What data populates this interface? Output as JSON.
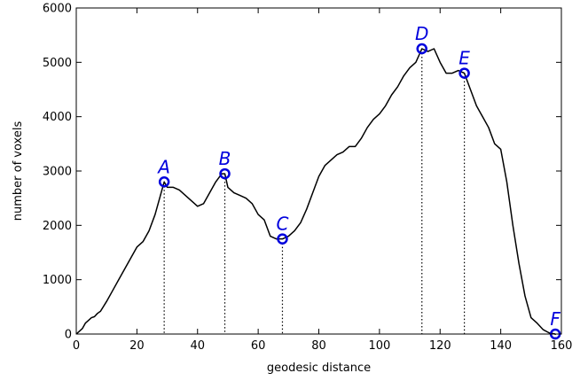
{
  "chart_data": {
    "type": "line",
    "xlabel": "geodesic distance",
    "ylabel": "number of voxels",
    "xlim": [
      0,
      160
    ],
    "ylim": [
      0,
      6000
    ],
    "xticks": [
      0,
      20,
      40,
      60,
      80,
      100,
      120,
      140,
      160
    ],
    "yticks": [
      0,
      1000,
      2000,
      3000,
      4000,
      5000,
      6000
    ],
    "grid": false,
    "colors": {
      "line": "#000000",
      "markers": "#0000dd",
      "labels": "#0000dd",
      "drop_lines": "#000000"
    },
    "series": [
      {
        "x": [
          0,
          1,
          2,
          3,
          4,
          5,
          6,
          7,
          8,
          10,
          12,
          14,
          16,
          18,
          20,
          22,
          24,
          26,
          28,
          29,
          30,
          32,
          34,
          36,
          38,
          40,
          42,
          44,
          46,
          48,
          49,
          50,
          52,
          54,
          56,
          58,
          60,
          62,
          64,
          66,
          68,
          70,
          72,
          74,
          76,
          78,
          80,
          82,
          84,
          86,
          88,
          90,
          92,
          94,
          96,
          98,
          100,
          102,
          104,
          106,
          108,
          110,
          112,
          114,
          116,
          118,
          120,
          122,
          124,
          126,
          128,
          130,
          132,
          134,
          136,
          138,
          140,
          142,
          144,
          146,
          148,
          150,
          152,
          154,
          156,
          158
        ],
        "y": [
          0,
          50,
          100,
          200,
          250,
          300,
          320,
          380,
          420,
          600,
          800,
          1000,
          1200,
          1400,
          1600,
          1700,
          1900,
          2200,
          2600,
          2800,
          2700,
          2700,
          2650,
          2550,
          2450,
          2350,
          2400,
          2600,
          2800,
          2950,
          2950,
          2700,
          2600,
          2550,
          2500,
          2400,
          2200,
          2100,
          1800,
          1750,
          1750,
          1800,
          1900,
          2050,
          2300,
          2600,
          2900,
          3100,
          3200,
          3300,
          3350,
          3450,
          3450,
          3600,
          3800,
          3950,
          4050,
          4200,
          4400,
          4550,
          4750,
          4900,
          5000,
          5250,
          5200,
          5250,
          5000,
          4800,
          4800,
          4850,
          4800,
          4500,
          4200,
          4000,
          3800,
          3500,
          3400,
          2800,
          2000,
          1300,
          700,
          300,
          200,
          80,
          20,
          0
        ]
      }
    ],
    "points": [
      {
        "label": "A",
        "x": 29,
        "y": 2800
      },
      {
        "label": "B",
        "x": 49,
        "y": 2950
      },
      {
        "label": "C",
        "x": 68,
        "y": 1750
      },
      {
        "label": "D",
        "x": 114,
        "y": 5250
      },
      {
        "label": "E",
        "x": 128,
        "y": 4800
      },
      {
        "label": "F",
        "x": 158,
        "y": 0
      }
    ]
  }
}
